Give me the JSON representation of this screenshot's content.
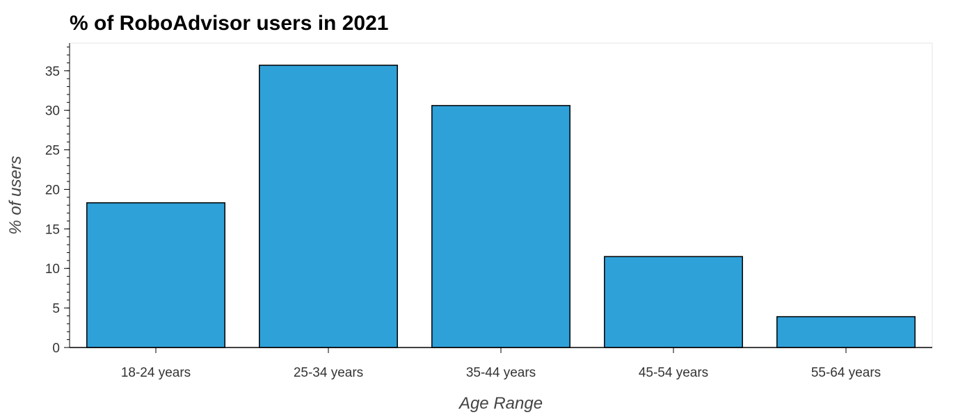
{
  "chart_data": {
    "type": "bar",
    "title": "% of RoboAdvisor users in 2021",
    "xlabel": "Age Range",
    "ylabel": "% of users",
    "categories": [
      "18-24 years",
      "25-34 years",
      "35-44 years",
      "45-54 years",
      "55-64 years"
    ],
    "values": [
      18.3,
      35.7,
      30.6,
      11.5,
      3.9
    ],
    "ylim": [
      0,
      38.5
    ],
    "yticks": [
      "0",
      "5",
      "10",
      "15",
      "20",
      "25",
      "30",
      "35"
    ],
    "grid": false,
    "legend": "none",
    "colors": {
      "bar_fill": "#2fa1d9",
      "bar_stroke": "#000000",
      "axis": "#000000",
      "frame": "#e5e5e5"
    }
  }
}
